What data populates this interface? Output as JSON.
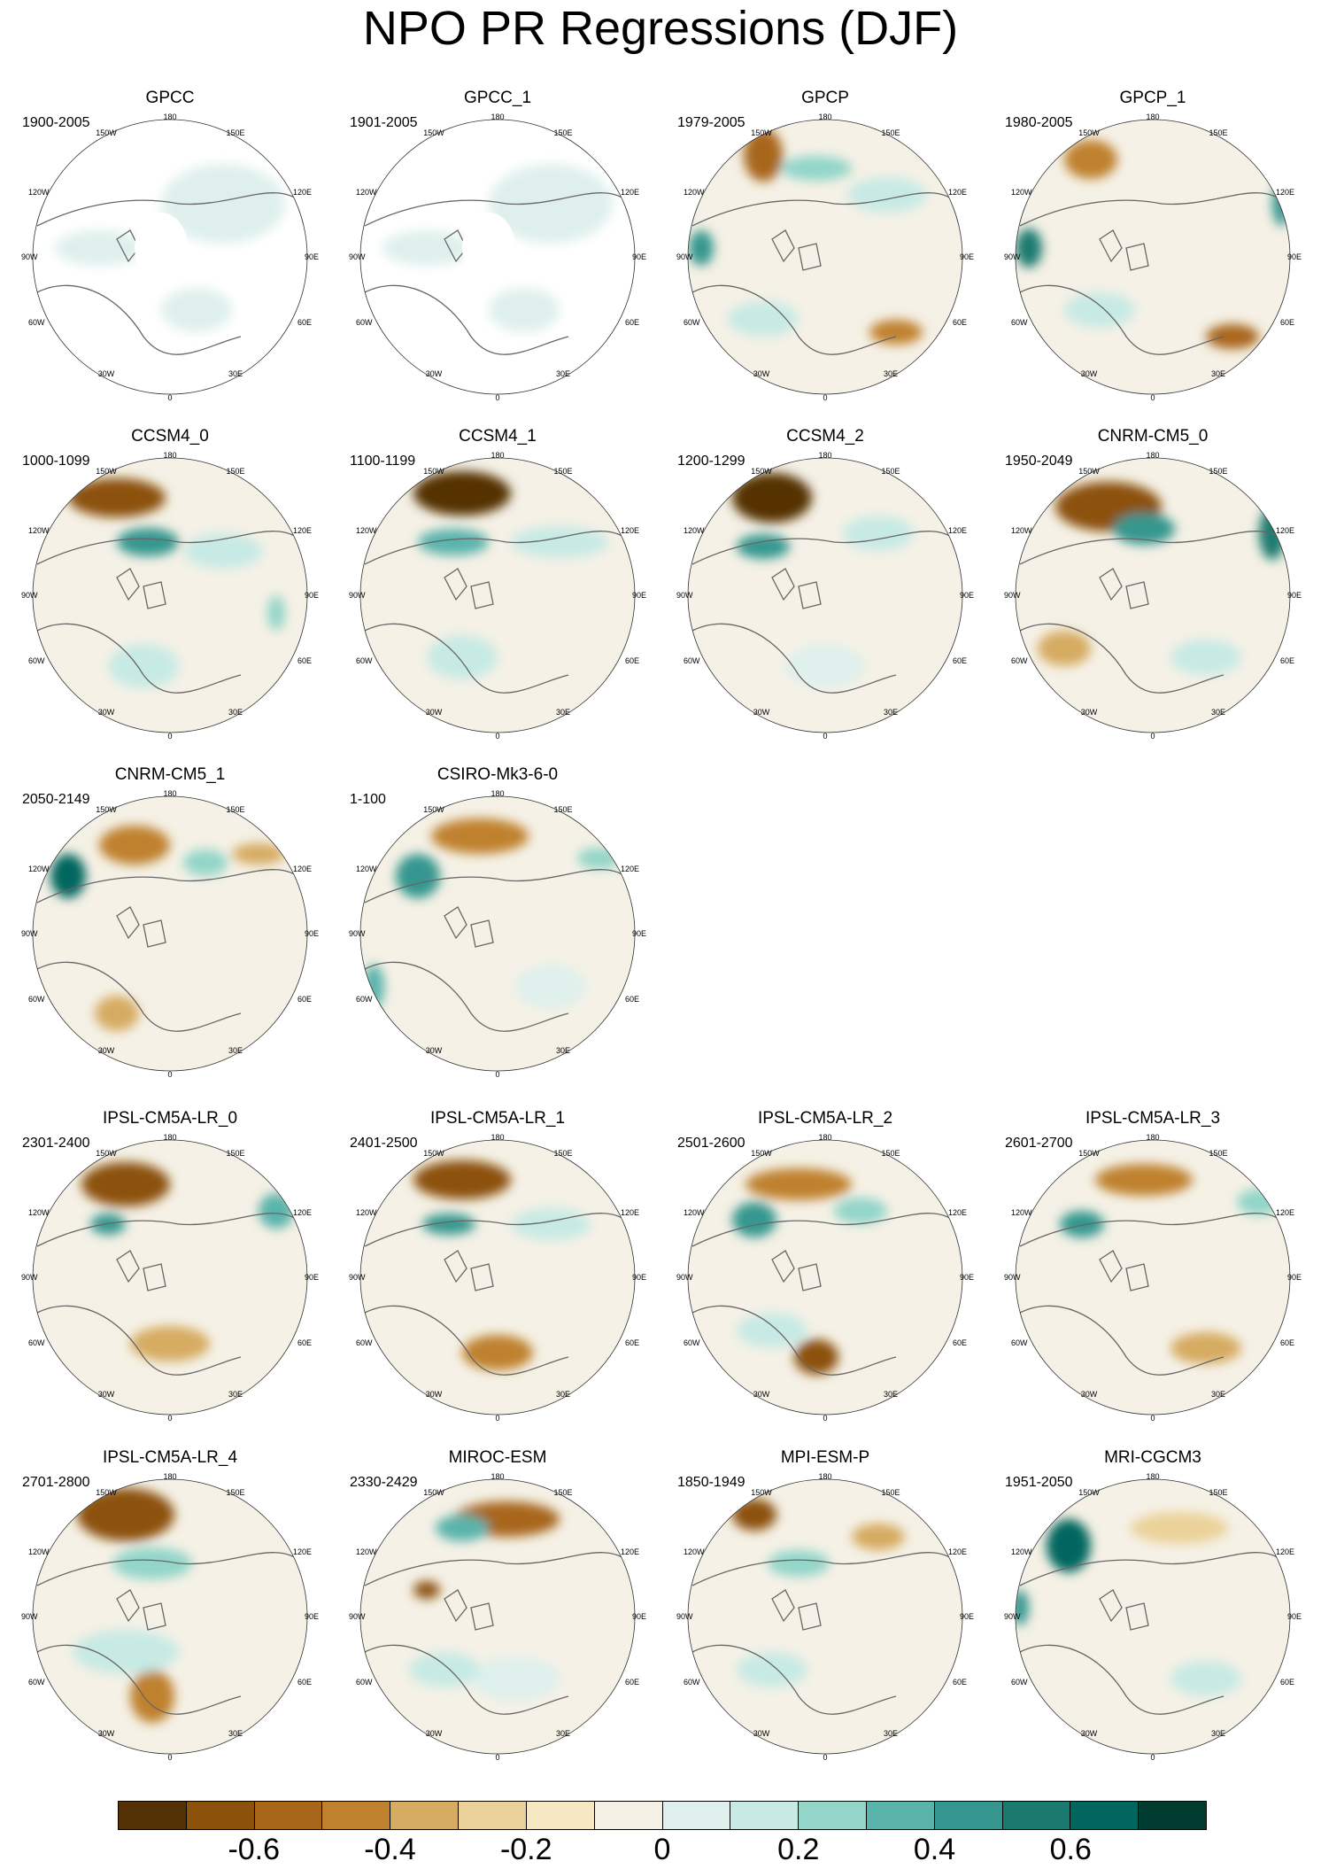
{
  "title": "NPO PR Regressions (DJF)",
  "lon_labels": {
    "top": "180",
    "bottom": "0",
    "left": "90W",
    "right": "90E",
    "upper_left_outer": "150W",
    "upper_right_outer": "150E",
    "upper_left_inner": "120W",
    "upper_right_inner": "120E",
    "lower_left_inner": "60W",
    "lower_right_inner": "60E",
    "lower_left_outer": "30W",
    "lower_right_outer": "30E"
  },
  "panels": [
    {
      "name": "GPCC",
      "period": "1900-2005",
      "missing": true
    },
    {
      "name": "GPCC_1",
      "period": "1901-2005",
      "missing": true
    },
    {
      "name": "GPCP",
      "period": "1979-2005"
    },
    {
      "name": "GPCP_1",
      "period": "1980-2005"
    },
    {
      "name": "CCSM4_0",
      "period": "1000-1099"
    },
    {
      "name": "CCSM4_1",
      "period": "1100-1199"
    },
    {
      "name": "CCSM4_2",
      "period": "1200-1299"
    },
    {
      "name": "CNRM-CM5_0",
      "period": "1950-2049"
    },
    {
      "name": "CNRM-CM5_1",
      "period": "2050-2149"
    },
    {
      "name": "CSIRO-Mk3-6-0",
      "period": "1-100"
    },
    {
      "name": "IPSL-CM5A-LR_0",
      "period": "2301-2400"
    },
    {
      "name": "IPSL-CM5A-LR_1",
      "period": "2401-2500"
    },
    {
      "name": "IPSL-CM5A-LR_2",
      "period": "2501-2600"
    },
    {
      "name": "IPSL-CM5A-LR_3",
      "period": "2601-2700"
    },
    {
      "name": "IPSL-CM5A-LR_4",
      "period": "2701-2800"
    },
    {
      "name": "MIROC-ESM",
      "period": "2330-2429"
    },
    {
      "name": "MPI-ESM-P",
      "period": "1850-1949"
    },
    {
      "name": "MRI-CGCM3",
      "period": "1951-2050"
    }
  ],
  "colorbar": {
    "colors": [
      "#543005",
      "#8c510a",
      "#a8661a",
      "#bf812d",
      "#d6ab62",
      "#ebd29a",
      "#f6e8c3",
      "#f5f1e6",
      "#dff0ec",
      "#c7eae5",
      "#93d5c9",
      "#5ab4ac",
      "#35978f",
      "#1a7a6f",
      "#01665e",
      "#003c30"
    ],
    "tick_labels": [
      "-0.6",
      "-0.4",
      "-0.2",
      "0",
      "0.2",
      "0.4",
      "0.6"
    ]
  }
}
